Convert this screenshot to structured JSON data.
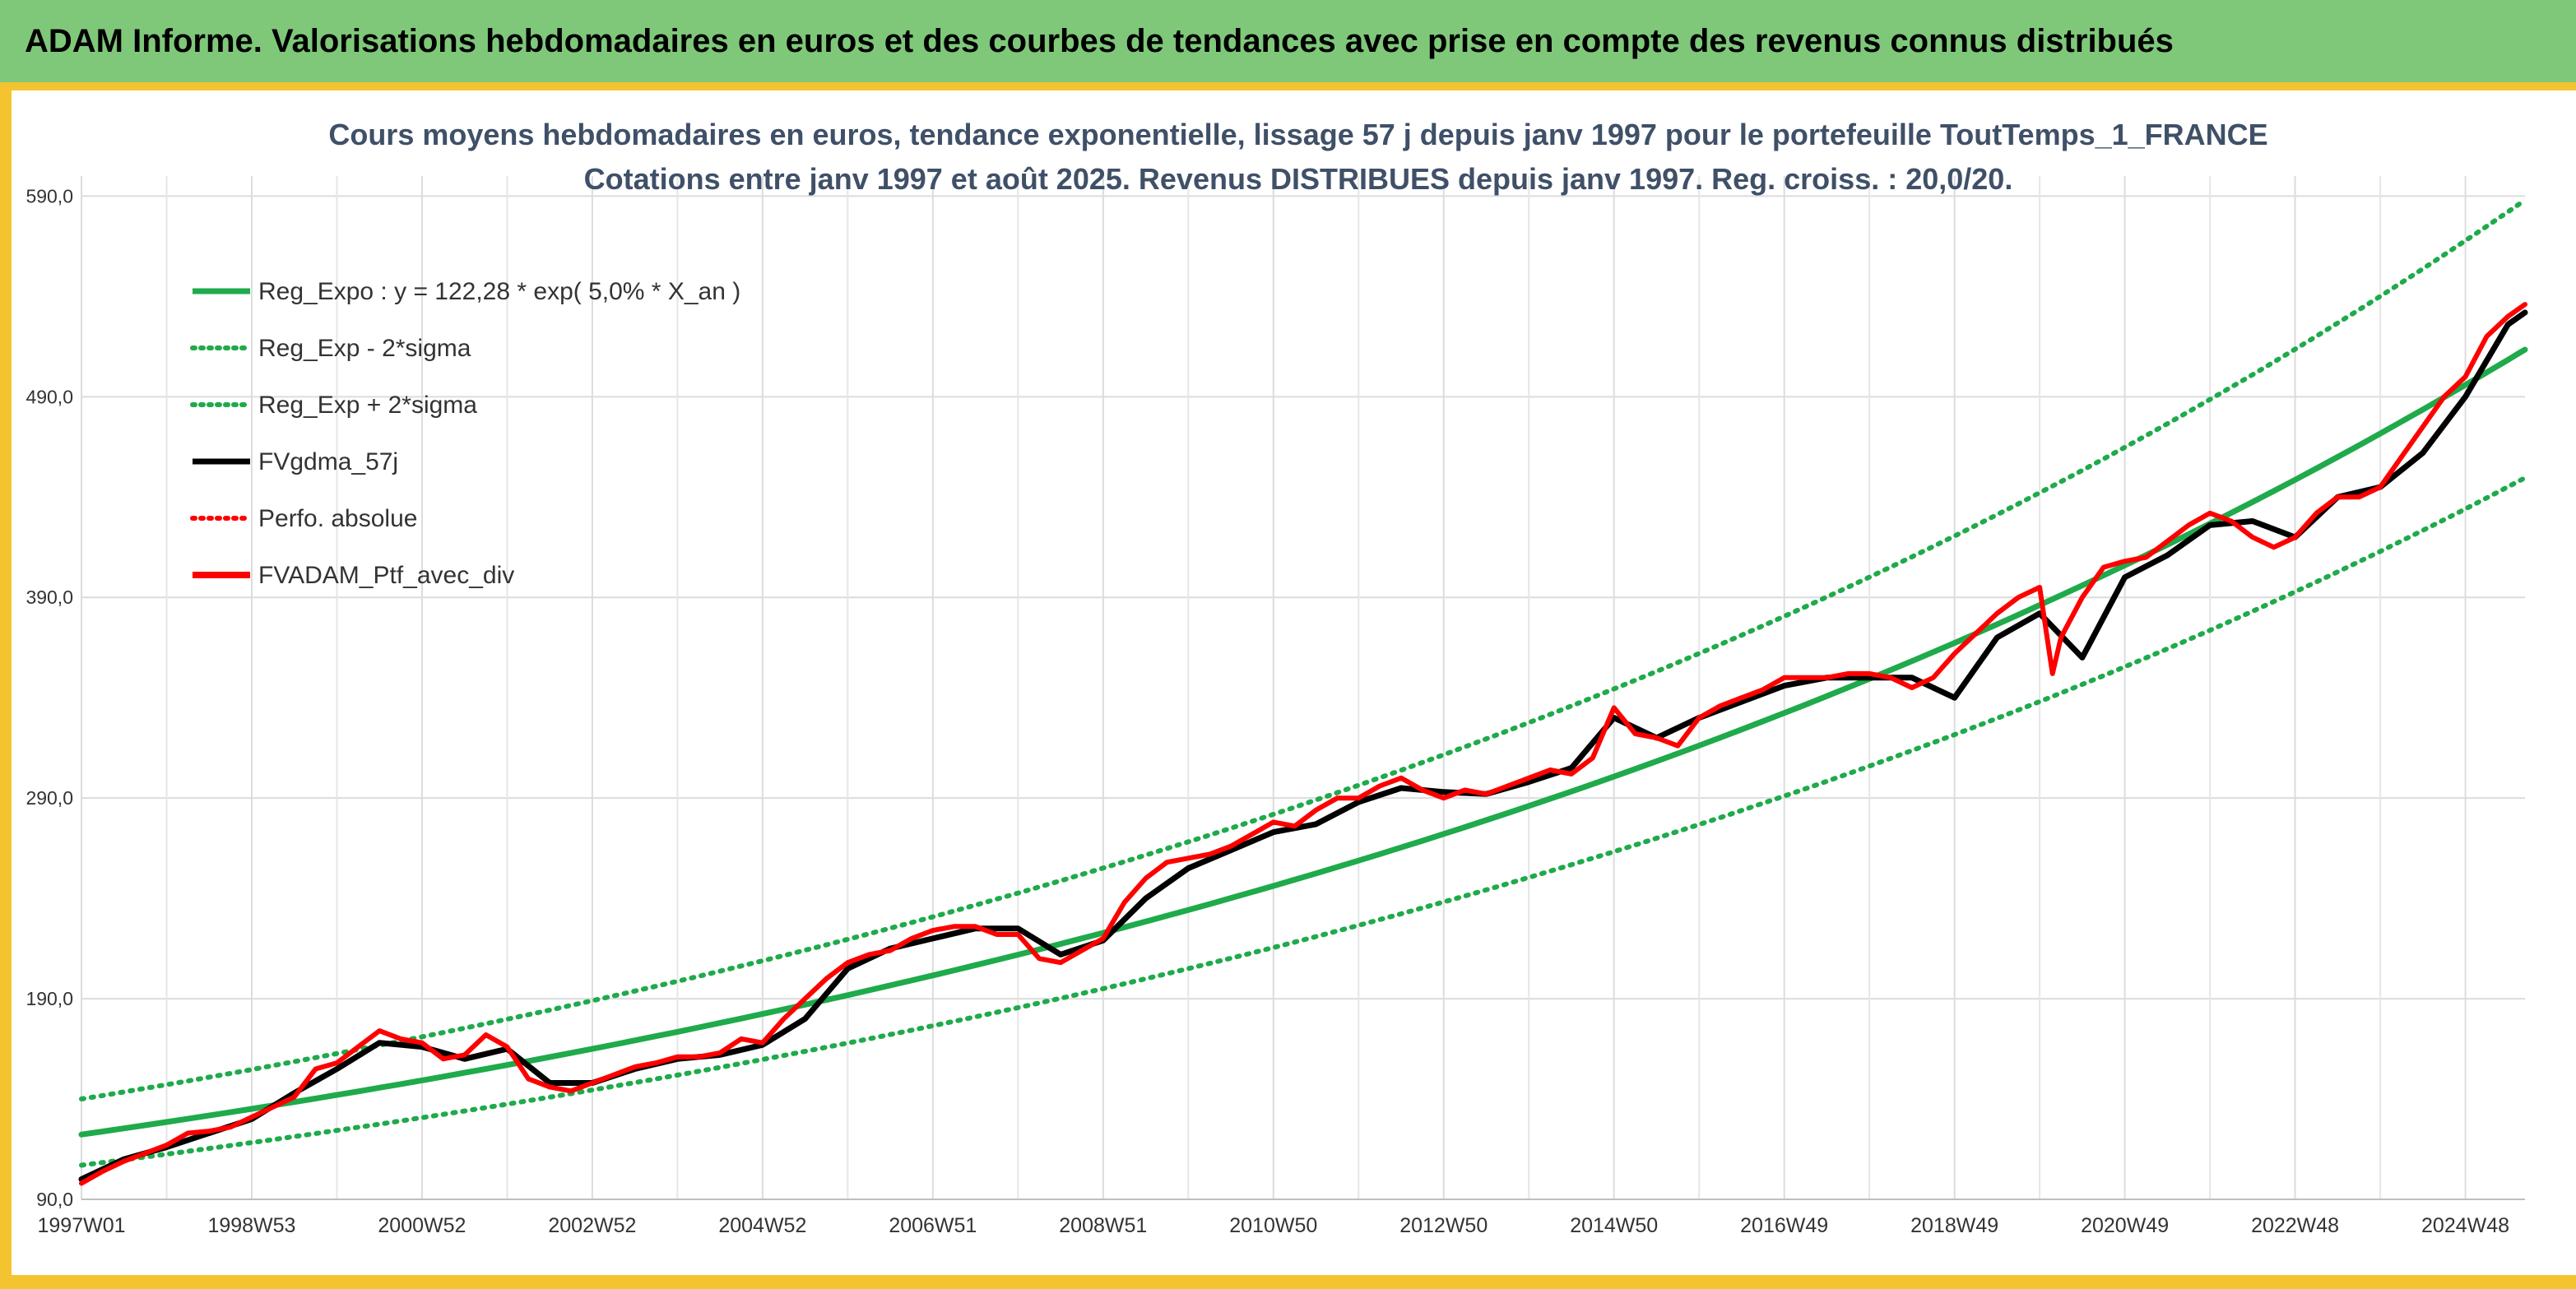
{
  "header": {
    "title": "ADAM Informe. Valorisations hebdomadaires en euros et des courbes de tendances avec prise en compte des revenus connus distribués"
  },
  "colors": {
    "banner": "#7fc87a",
    "frame": "#f4c430",
    "reg_green": "#1faa4b",
    "fvgdma_black": "#000000",
    "ptf_red": "#ff0000"
  },
  "chart_data": {
    "type": "line",
    "title": "Cours moyens hebdomadaires en euros, tendance exponentielle, lissage 57 j depuis janv 1997 pour le portefeuille ToutTemps_1_FRANCE",
    "subtitle": "Cotations entre janv 1997 et août 2025. Revenus DISTRIBUES depuis janv 1997. Reg. croiss. : 20,0/20.",
    "xlabel": "",
    "ylabel": "",
    "ylim": [
      90,
      600
    ],
    "yticks": [
      "90,0",
      "190,0",
      "290,0",
      "390,0",
      "490,0",
      "590,0"
    ],
    "ytick_values": [
      90,
      190,
      290,
      390,
      490,
      590
    ],
    "xlim": [
      1997.0,
      2025.7
    ],
    "xticks": [
      "1997W01",
      "1998W53",
      "2000W52",
      "2002W52",
      "2004W52",
      "2006W51",
      "2008W51",
      "2010W50",
      "2012W50",
      "2014W50",
      "2016W49",
      "2018W49",
      "2020W49",
      "2022W48",
      "2024W48"
    ],
    "xtick_years": [
      1997.0,
      1999.0,
      2001.0,
      2003.0,
      2005.0,
      2007.0,
      2009.0,
      2011.0,
      2013.0,
      2015.0,
      2017.0,
      2019.0,
      2021.0,
      2023.0,
      2025.0
    ],
    "grid": true,
    "legend_position": "top-left",
    "legend": [
      {
        "label": "Reg_Expo : y = 122,28 * exp( 5,0% *  X_an )",
        "style": "solid",
        "color": "#1faa4b"
      },
      {
        "label": "Reg_Exp - 2*sigma",
        "style": "dotted",
        "color": "#1faa4b"
      },
      {
        "label": "Reg_Exp + 2*sigma",
        "style": "dotted",
        "color": "#1faa4b"
      },
      {
        "label": "FVgdma_57j",
        "style": "solid",
        "color": "#000000"
      },
      {
        "label": "Perfo. absolue",
        "style": "dotted",
        "color": "#ff0000"
      },
      {
        "label": "FVADAM_Ptf_avec_div",
        "style": "solid",
        "color": "#ff0000"
      }
    ],
    "series": [
      {
        "name": "Reg_Expo",
        "x": [
          1997.0,
          1999.0,
          2001.0,
          2003.0,
          2005.0,
          2007.0,
          2009.0,
          2011.0,
          2013.0,
          2015.0,
          2017.0,
          2019.0,
          2021.0,
          2023.0,
          2025.0,
          2025.7
        ],
        "values": [
          122.3,
          135.1,
          149.3,
          165.0,
          182.4,
          201.6,
          222.8,
          246.2,
          272.1,
          300.7,
          332.4,
          367.3,
          406.0,
          448.6,
          495.9,
          513.5
        ]
      },
      {
        "name": "Reg_Exp - 2*sigma",
        "x": [
          1997.0,
          1999.0,
          2001.0,
          2003.0,
          2005.0,
          2007.0,
          2009.0,
          2011.0,
          2013.0,
          2015.0,
          2017.0,
          2019.0,
          2021.0,
          2023.0,
          2025.0,
          2025.7
        ],
        "values": [
          107.0,
          118.3,
          130.7,
          144.5,
          159.7,
          176.5,
          195.0,
          215.5,
          238.2,
          263.3,
          291.0,
          321.6,
          355.4,
          392.8,
          434.1,
          449.6
        ]
      },
      {
        "name": "Reg_Exp + 2*sigma",
        "x": [
          1997.0,
          1999.0,
          2001.0,
          2003.0,
          2005.0,
          2007.0,
          2009.0,
          2011.0,
          2013.0,
          2015.0,
          2017.0,
          2019.0,
          2021.0,
          2023.0,
          2025.0,
          2025.7
        ],
        "values": [
          140.0,
          154.7,
          171.0,
          189.0,
          208.9,
          230.8,
          255.1,
          281.9,
          311.6,
          344.4,
          380.6,
          420.6,
          464.8,
          513.7,
          567.8,
          588.0
        ]
      },
      {
        "name": "FVgdma_57j",
        "x": [
          1997.0,
          1997.5,
          1998.0,
          1998.5,
          1999.0,
          1999.5,
          2000.0,
          2000.5,
          2001.0,
          2001.5,
          2002.0,
          2002.5,
          2003.0,
          2003.5,
          2004.0,
          2004.5,
          2005.0,
          2005.5,
          2006.0,
          2006.5,
          2007.0,
          2007.5,
          2008.0,
          2008.5,
          2009.0,
          2009.5,
          2010.0,
          2010.5,
          2011.0,
          2011.5,
          2012.0,
          2012.5,
          2013.0,
          2013.5,
          2014.0,
          2014.5,
          2015.0,
          2015.5,
          2016.0,
          2016.5,
          2017.0,
          2017.5,
          2018.0,
          2018.5,
          2019.0,
          2019.5,
          2020.0,
          2020.5,
          2021.0,
          2021.5,
          2022.0,
          2022.5,
          2023.0,
          2023.5,
          2024.0,
          2024.5,
          2025.0,
          2025.5,
          2025.7
        ],
        "values": [
          100,
          110,
          116,
          123,
          130,
          143,
          155,
          168,
          166,
          160,
          165,
          148,
          148,
          155,
          160,
          162,
          167,
          180,
          205,
          215,
          220,
          225,
          225,
          212,
          219,
          240,
          255,
          264,
          273,
          277,
          288,
          295,
          293,
          292,
          298,
          305,
          330,
          320,
          330,
          338,
          346,
          350,
          350,
          350,
          340,
          370,
          382,
          360,
          400,
          411,
          426,
          428,
          420,
          440,
          445,
          462,
          490,
          526,
          532
        ]
      },
      {
        "name": "FVADAM_Ptf_avec_div",
        "x": [
          1997.0,
          1997.25,
          1997.5,
          1997.75,
          1998.0,
          1998.25,
          1998.5,
          1998.75,
          1999.0,
          1999.25,
          1999.5,
          1999.75,
          2000.0,
          2000.25,
          2000.5,
          2000.75,
          2001.0,
          2001.25,
          2001.5,
          2001.75,
          2002.0,
          2002.25,
          2002.5,
          2002.75,
          2003.0,
          2003.25,
          2003.5,
          2003.75,
          2004.0,
          2004.25,
          2004.5,
          2004.75,
          2005.0,
          2005.25,
          2005.5,
          2005.75,
          2006.0,
          2006.25,
          2006.5,
          2006.75,
          2007.0,
          2007.25,
          2007.5,
          2007.75,
          2008.0,
          2008.25,
          2008.5,
          2008.75,
          2009.0,
          2009.25,
          2009.5,
          2009.75,
          2010.0,
          2010.25,
          2010.5,
          2010.75,
          2011.0,
          2011.25,
          2011.5,
          2011.75,
          2012.0,
          2012.25,
          2012.5,
          2012.75,
          2013.0,
          2013.25,
          2013.5,
          2013.75,
          2014.0,
          2014.25,
          2014.5,
          2014.75,
          2015.0,
          2015.25,
          2015.5,
          2015.75,
          2016.0,
          2016.25,
          2016.5,
          2016.75,
          2017.0,
          2017.25,
          2017.5,
          2017.75,
          2018.0,
          2018.25,
          2018.5,
          2018.75,
          2019.0,
          2019.25,
          2019.5,
          2019.75,
          2020.0,
          2020.15,
          2020.25,
          2020.5,
          2020.75,
          2021.0,
          2021.25,
          2021.5,
          2021.75,
          2022.0,
          2022.25,
          2022.5,
          2022.75,
          2023.0,
          2023.25,
          2023.5,
          2023.75,
          2024.0,
          2024.25,
          2024.5,
          2024.75,
          2025.0,
          2025.25,
          2025.5,
          2025.7
        ],
        "values": [
          98,
          104,
          109,
          113,
          117,
          123,
          124,
          126,
          131,
          136,
          141,
          155,
          158,
          166,
          174,
          170,
          168,
          160,
          162,
          172,
          166,
          150,
          146,
          144,
          148,
          152,
          156,
          158,
          161,
          161,
          163,
          170,
          168,
          180,
          190,
          200,
          208,
          212,
          214,
          220,
          224,
          226,
          226,
          222,
          222,
          210,
          208,
          214,
          220,
          238,
          250,
          258,
          260,
          262,
          266,
          272,
          278,
          276,
          284,
          290,
          290,
          296,
          300,
          294,
          290,
          294,
          292,
          296,
          300,
          304,
          302,
          310,
          335,
          322,
          320,
          316,
          330,
          336,
          340,
          344,
          350,
          350,
          350,
          352,
          352,
          350,
          345,
          350,
          362,
          372,
          382,
          390,
          395,
          352,
          370,
          390,
          405,
          408,
          410,
          418,
          426,
          432,
          428,
          420,
          415,
          420,
          432,
          440,
          440,
          445,
          460,
          475,
          490,
          500,
          520,
          530,
          536
        ]
      }
    ]
  }
}
